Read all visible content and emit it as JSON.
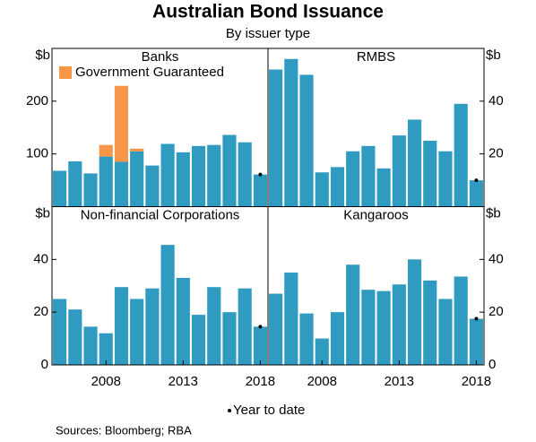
{
  "title": "Australian Bond Issuance",
  "subtitle": "By issuer type",
  "note": "Year to date",
  "sources": "Sources:  Bloomberg; RBA",
  "chart_data": [
    {
      "type": "bar",
      "title": "Banks",
      "ylabel": "$b",
      "yaxis_side": "left",
      "stacked": true,
      "legend": "upper left",
      "x": [
        2005,
        2006,
        2007,
        2008,
        2009,
        2010,
        2011,
        2012,
        2013,
        2014,
        2015,
        2016,
        2017,
        2018
      ],
      "xlim": [
        2004.5,
        2018.5
      ],
      "ylim": [
        0,
        300
      ],
      "yticks": [
        100,
        200
      ],
      "series": [
        {
          "color": "#2f9bc1",
          "values": [
            68,
            86,
            63,
            95,
            85,
            105,
            78,
            119,
            103,
            115,
            117,
            136,
            122,
            61
          ]
        },
        {
          "name": "Government Guaranteed",
          "color": "#f79646",
          "values": [
            0,
            0,
            0,
            22,
            144,
            5,
            0,
            0,
            0,
            0,
            0,
            0,
            0,
            0
          ]
        }
      ]
    },
    {
      "type": "bar",
      "title": "RMBS",
      "ylabel": "$b",
      "yaxis_side": "right",
      "x": [
        2005,
        2006,
        2007,
        2008,
        2009,
        2010,
        2011,
        2012,
        2013,
        2014,
        2015,
        2016,
        2017,
        2018
      ],
      "xlim": [
        2004.5,
        2018.5
      ],
      "ylim": [
        0,
        60
      ],
      "yticks": [
        20,
        40
      ],
      "series": [
        {
          "color": "#2f9bc1",
          "values": [
            52,
            56,
            50,
            13,
            15,
            21,
            23,
            14.5,
            27,
            33,
            25,
            21,
            39,
            10
          ]
        }
      ]
    },
    {
      "type": "bar",
      "title": "Non-financial Corporations",
      "ylabel": "$b",
      "yaxis_side": "left",
      "x": [
        2005,
        2006,
        2007,
        2008,
        2009,
        2010,
        2011,
        2012,
        2013,
        2014,
        2015,
        2016,
        2017,
        2018
      ],
      "xlim": [
        2004.5,
        2018.5
      ],
      "xticks": [
        2008,
        2013,
        2018
      ],
      "ylim": [
        0,
        60
      ],
      "yticks": [
        0,
        20,
        40
      ],
      "series": [
        {
          "color": "#2f9bc1",
          "values": [
            25,
            21,
            14.5,
            12,
            29.5,
            25,
            29,
            45.5,
            33,
            19,
            29.5,
            20,
            29,
            14.5
          ]
        }
      ]
    },
    {
      "type": "bar",
      "title": "Kangaroos",
      "ylabel": "$b",
      "yaxis_side": "right",
      "x": [
        2005,
        2006,
        2007,
        2008,
        2009,
        2010,
        2011,
        2012,
        2013,
        2014,
        2015,
        2016,
        2017,
        2018
      ],
      "xlim": [
        2004.5,
        2018.5
      ],
      "xticks": [
        2008,
        2013,
        2018
      ],
      "ylim": [
        0,
        60
      ],
      "yticks": [
        0,
        20,
        40
      ],
      "series": [
        {
          "color": "#2f9bc1",
          "values": [
            27,
            35,
            19.5,
            10,
            20,
            38,
            28.5,
            28,
            30.5,
            40,
            32,
            25,
            33.5,
            17.5
          ]
        }
      ]
    }
  ]
}
